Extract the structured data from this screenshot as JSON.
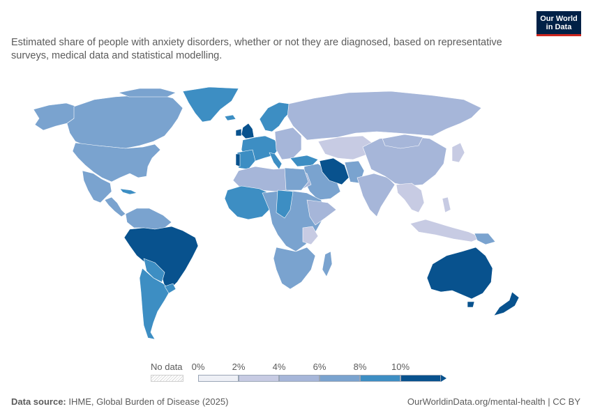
{
  "subtitle": "Estimated share of people with anxiety disorders, whether or not they are diagnosed, based on representative surveys, medical data and statistical modelling.",
  "logo": {
    "line1": "Our World",
    "line2": "in Data"
  },
  "legend": {
    "nodata_label": "No data",
    "ticks": [
      "0%",
      "2%",
      "4%",
      "6%",
      "8%",
      "10%"
    ],
    "colors": [
      "#eef0f6",
      "#c7cbe3",
      "#a6b6d9",
      "#7aa3cf",
      "#3d8ec3",
      "#08528e"
    ]
  },
  "footer": {
    "source_label": "Data source:",
    "source_text": "IHME, Global Burden of Disease (2025)",
    "url_text": "OurWorldinData.org/mental-health | CC BY"
  }
}
